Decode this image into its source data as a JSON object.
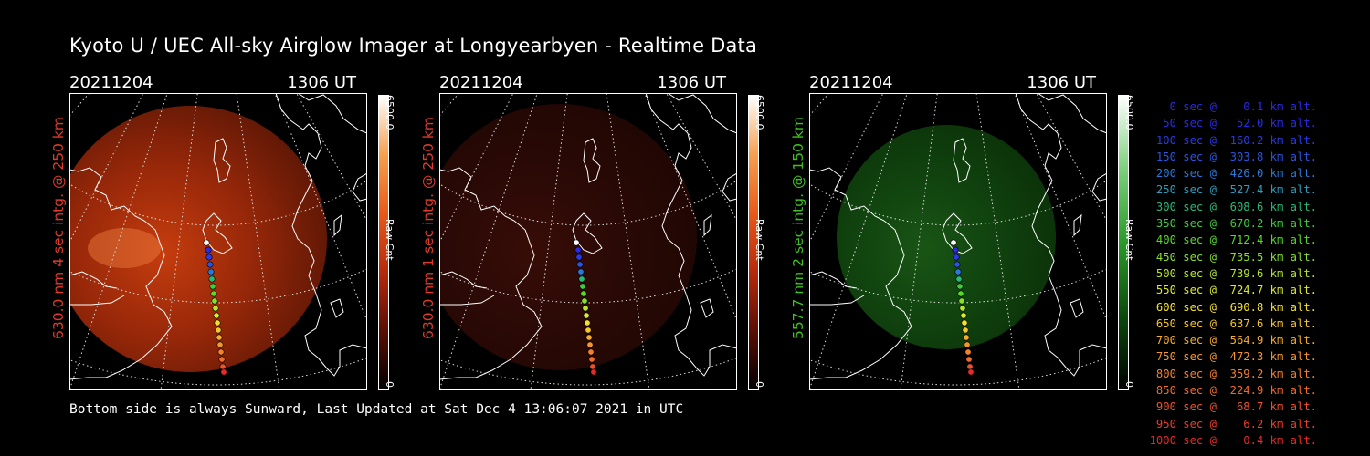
{
  "title": "Kyoto U / UEC All-sky Airglow Imager at Longyearbyen - Realtime Data",
  "footer": "Bottom side is always Sunward, Last Updated at Sat Dec  4 13:06:07 2021 in UTC",
  "panels": [
    {
      "date": "20211204",
      "time": "1306 UT",
      "ylabel": "630.0 nm 4 sec intg. @ 250 km",
      "ylabel_color": "#e03a2a",
      "cbar_max": "6500.0",
      "cbar_min": "0",
      "cbar_name": "Raw Cnt",
      "tint": "red",
      "intensity": "bright"
    },
    {
      "date": "20211204",
      "time": "1306 UT",
      "ylabel": "630.0 nm 1 sec intg. @ 250 km",
      "ylabel_color": "#e03a2a",
      "cbar_max": "6500.0",
      "cbar_min": "0",
      "cbar_name": "Raw Cnt",
      "tint": "red",
      "intensity": "dim"
    },
    {
      "date": "20211204",
      "time": "1306 UT",
      "ylabel": "557.7 nm 2 sec intg. @ 150 km",
      "ylabel_color": "#3ec21c",
      "cbar_max": "6500.0",
      "cbar_min": "0",
      "cbar_name": "Raw Cnt",
      "tint": "green",
      "intensity": "medium"
    }
  ],
  "legend": [
    {
      "text": "   0 sec @    0.1 km alt.",
      "color": "#2a2ae6"
    },
    {
      "text": "  50 sec @   52.0 km alt.",
      "color": "#2a2ae6"
    },
    {
      "text": " 100 sec @  160.2 km alt.",
      "color": "#2a3ae6"
    },
    {
      "text": " 150 sec @  303.8 km alt.",
      "color": "#2a55e0"
    },
    {
      "text": " 200 sec @  426.0 km alt.",
      "color": "#2a78d8"
    },
    {
      "text": " 250 sec @  527.4 km alt.",
      "color": "#2a9ec0"
    },
    {
      "text": " 300 sec @  608.6 km alt.",
      "color": "#28b878"
    },
    {
      "text": " 350 sec @  670.2 km alt.",
      "color": "#3ecc3a"
    },
    {
      "text": " 400 sec @  712.4 km alt.",
      "color": "#5ad82a"
    },
    {
      "text": " 450 sec @  735.5 km alt.",
      "color": "#86e02a"
    },
    {
      "text": " 500 sec @  739.6 km alt.",
      "color": "#b4e62a"
    },
    {
      "text": " 550 sec @  724.7 km alt.",
      "color": "#dcea2a"
    },
    {
      "text": " 600 sec @  690.8 km alt.",
      "color": "#f2e02a"
    },
    {
      "text": " 650 sec @  637.6 km alt.",
      "color": "#f5c62a"
    },
    {
      "text": " 700 sec @  564.9 km alt.",
      "color": "#f5ac2a"
    },
    {
      "text": " 750 sec @  472.3 km alt.",
      "color": "#f5962a"
    },
    {
      "text": " 800 sec @  359.2 km alt.",
      "color": "#f3802a"
    },
    {
      "text": " 850 sec @  224.9 km alt.",
      "color": "#f06a2a"
    },
    {
      "text": " 900 sec @   68.7 km alt.",
      "color": "#ec522a"
    },
    {
      "text": " 950 sec @    6.2 km alt.",
      "color": "#e83e2a"
    },
    {
      "text": "1000 sec @    0.4 km alt.",
      "color": "#e42a2a"
    }
  ]
}
